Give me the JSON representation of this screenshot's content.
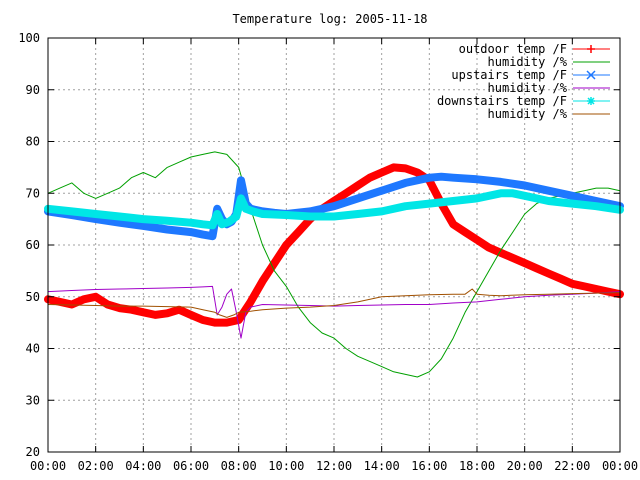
{
  "chart_data": {
    "type": "line",
    "title": "Temperature log: 2005-11-18",
    "xlabel": "",
    "ylabel": "",
    "x_ticks": [
      "00:00",
      "02:00",
      "04:00",
      "06:00",
      "08:00",
      "10:00",
      "12:00",
      "14:00",
      "16:00",
      "18:00",
      "20:00",
      "22:00",
      "00:00"
    ],
    "y_ticks": [
      "20",
      "30",
      "40",
      "50",
      "60",
      "70",
      "80",
      "90",
      "100"
    ],
    "xlim": [
      0,
      24
    ],
    "ylim": [
      20,
      100
    ],
    "grid": true,
    "legend_position": "top-right",
    "series": [
      {
        "name": "outdoor temp /F",
        "color": "#ff0000",
        "style": "thick-points",
        "x": [
          0,
          0.5,
          1,
          1.5,
          2,
          2.5,
          3,
          3.5,
          4,
          4.5,
          5,
          5.5,
          6,
          6.5,
          7,
          7.5,
          8,
          8.5,
          9,
          9.5,
          10,
          10.5,
          11,
          11.5,
          12,
          12.5,
          13,
          13.5,
          14,
          14.5,
          15,
          15.5,
          16,
          16.5,
          17,
          17.5,
          18,
          18.5,
          19,
          19.5,
          20,
          20.5,
          21,
          21.5,
          22,
          22.5,
          23,
          23.5,
          24
        ],
        "y": [
          49.5,
          49,
          48.5,
          49.5,
          50,
          48.5,
          47.8,
          47.5,
          47,
          46.5,
          46.8,
          47.5,
          46.5,
          45.5,
          45,
          45,
          45.5,
          49,
          53,
          56.5,
          60,
          62.5,
          65,
          67,
          68.5,
          70,
          71.5,
          73,
          74,
          75,
          74.8,
          74,
          72.5,
          68,
          64,
          62.5,
          61,
          59.5,
          58.5,
          57.5,
          56.5,
          55.5,
          54.5,
          53.5,
          52.5,
          52,
          51.5,
          51,
          50.5
        ]
      },
      {
        "name": "humidity /%",
        "color": "#00a000",
        "style": "thin-line",
        "x": [
          0,
          0.5,
          1,
          1.5,
          2,
          2.5,
          3,
          3.5,
          4,
          4.5,
          5,
          5.5,
          6,
          6.5,
          7,
          7.5,
          8,
          8.5,
          9,
          9.5,
          10,
          10.5,
          11,
          11.5,
          12,
          12.5,
          13,
          13.5,
          14,
          14.5,
          15,
          15.5,
          16,
          16.5,
          17,
          17.5,
          18,
          18.5,
          19,
          19.5,
          20,
          20.5,
          21,
          21.5,
          22,
          22.5,
          23,
          23.5,
          24
        ],
        "y": [
          70,
          71,
          72,
          70,
          69,
          70,
          71,
          73,
          74,
          73,
          75,
          76,
          77,
          77.5,
          78,
          77.5,
          75,
          67,
          60,
          55,
          52,
          48,
          45,
          43,
          42,
          40,
          38.5,
          37.5,
          36.5,
          35.5,
          35,
          34.5,
          35.5,
          38,
          42,
          47,
          51,
          55,
          59,
          62.5,
          66,
          68,
          69,
          69.5,
          70,
          70.5,
          71,
          71,
          70.5
        ]
      },
      {
        "name": "upstairs temp /F",
        "color": "#1e78ff",
        "style": "thick-points",
        "x": [
          0,
          1,
          2,
          3,
          4,
          5,
          6,
          6.5,
          6.9,
          7.1,
          7.3,
          7.5,
          7.7,
          7.9,
          8.1,
          8.3,
          8.5,
          9,
          9.5,
          10,
          11,
          12,
          13,
          14,
          15,
          16,
          16.5,
          17,
          18,
          19,
          20,
          21,
          22,
          23,
          24
        ],
        "y": [
          66.5,
          65.8,
          65,
          64.3,
          63.7,
          63,
          62.5,
          62,
          61.7,
          67,
          65,
          64,
          64.5,
          66,
          72.5,
          68,
          67,
          66.5,
          66.2,
          66,
          66.5,
          67.5,
          69,
          70.5,
          72,
          73,
          73.2,
          73,
          72.7,
          72.2,
          71.5,
          70.5,
          69.5,
          68.5,
          67.5
        ]
      },
      {
        "name": "humidity /%",
        "color": "#a000c8",
        "style": "thin-line",
        "x": [
          0,
          1,
          2,
          3,
          4,
          5,
          6,
          6.5,
          6.9,
          7.1,
          7.3,
          7.5,
          7.7,
          7.9,
          8.1,
          8.3,
          8.5,
          9,
          10,
          11,
          12,
          13,
          14,
          15,
          16,
          17,
          18,
          19,
          20,
          21,
          22,
          23,
          24
        ],
        "y": [
          51,
          51.2,
          51.4,
          51.5,
          51.6,
          51.7,
          51.8,
          51.9,
          52,
          46.5,
          48,
          50.5,
          51.5,
          47,
          42,
          47,
          48,
          48.5,
          48.4,
          48.3,
          48.2,
          48.3,
          48.4,
          48.5,
          48.5,
          48.8,
          49,
          49.5,
          50,
          50.3,
          50.5,
          50.7,
          51
        ]
      },
      {
        "name": "downstairs temp /F",
        "color": "#00e6e6",
        "style": "thick-points",
        "x": [
          0,
          1,
          2,
          3,
          4,
          5,
          6,
          6.5,
          6.9,
          7.1,
          7.3,
          7.6,
          7.9,
          8.1,
          8.3,
          8.6,
          9,
          10,
          11,
          12,
          13,
          14,
          15,
          16,
          17,
          18,
          18.5,
          19,
          19.5,
          20,
          21,
          22,
          23,
          24
        ],
        "y": [
          67,
          66.5,
          66,
          65.5,
          65,
          64.7,
          64.3,
          64,
          63.8,
          66,
          64,
          64.5,
          65.5,
          69,
          67,
          66.5,
          66,
          65.8,
          65.5,
          65.5,
          66,
          66.5,
          67.5,
          68,
          68.5,
          69,
          69.5,
          70,
          70,
          69.5,
          68.5,
          68,
          67.5,
          66.8
        ]
      },
      {
        "name": "humidity /%",
        "color": "#a05000",
        "style": "thin-line",
        "x": [
          0,
          1,
          2,
          3,
          4,
          5,
          6,
          6.5,
          7,
          7.2,
          7.5,
          7.8,
          8,
          8.5,
          9,
          10,
          11,
          12,
          13,
          14,
          15,
          16,
          17,
          17.5,
          17.8,
          18,
          18.5,
          19,
          20,
          21,
          22,
          23,
          24
        ],
        "y": [
          48.5,
          48.4,
          48.3,
          48.2,
          48.2,
          48.1,
          48,
          47.5,
          47,
          46.5,
          46,
          46.5,
          47,
          47.2,
          47.5,
          47.8,
          48,
          48.3,
          49,
          50,
          50.2,
          50.4,
          50.5,
          50.5,
          51.5,
          50.5,
          50.3,
          50.2,
          50.4,
          50.5,
          50.6,
          50.7,
          50.8
        ]
      }
    ]
  }
}
